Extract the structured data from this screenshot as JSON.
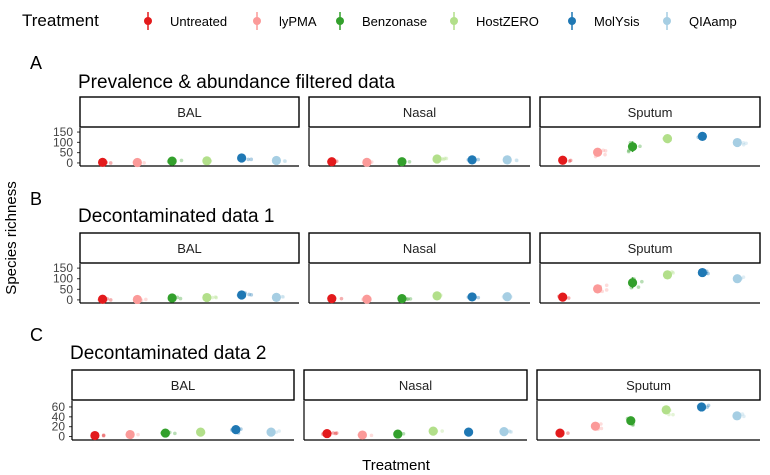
{
  "legend": {
    "title": "Treatment",
    "items": [
      {
        "label": "Untreated",
        "color": "#e31a1c"
      },
      {
        "label": "lyPMA",
        "color": "#fb9a99"
      },
      {
        "label": "Benzonase",
        "color": "#33a02c"
      },
      {
        "label": "HostZERO",
        "color": "#b2df8a"
      },
      {
        "label": "MolYsis",
        "color": "#1f78b4"
      },
      {
        "label": "QIAamp",
        "color": "#a6cee3"
      }
    ]
  },
  "axes": {
    "ylabel": "Species richness",
    "xlabel": "Treatment"
  },
  "chart_data": [
    {
      "type": "scatter",
      "panel_letter": "A",
      "title": "Prevalence & abundance filtered data",
      "facets": [
        "BAL",
        "Nasal",
        "Sputum"
      ],
      "categories": [
        "Untreated",
        "lyPMA",
        "Benzonase",
        "HostZERO",
        "MolYsis",
        "QIAamp"
      ],
      "yticks": [
        0,
        50,
        100,
        150
      ],
      "ylim": [
        -10,
        160
      ],
      "grid": false,
      "means": {
        "BAL": [
          3,
          2,
          9,
          10,
          24,
          12
        ],
        "Nasal": [
          6,
          3,
          6,
          19,
          15,
          15
        ],
        "Sputum": [
          13,
          52,
          79,
          118,
          129,
          99
        ]
      },
      "errors": {
        "BAL": [
          3,
          2,
          3,
          4,
          9,
          4
        ],
        "Nasal": [
          3,
          2,
          2,
          3,
          3,
          3
        ],
        "Sputum": [
          5,
          20,
          26,
          15,
          6,
          10
        ]
      }
    },
    {
      "type": "scatter",
      "panel_letter": "B",
      "title": "Decontaminated data 1",
      "facets": [
        "BAL",
        "Nasal",
        "Sputum"
      ],
      "categories": [
        "Untreated",
        "lyPMA",
        "Benzonase",
        "HostZERO",
        "MolYsis",
        "QIAamp"
      ],
      "yticks": [
        0,
        50,
        100,
        150
      ],
      "ylim": [
        -10,
        160
      ],
      "grid": false,
      "means": {
        "BAL": [
          3,
          2,
          9,
          11,
          23,
          12
        ],
        "Nasal": [
          6,
          3,
          6,
          19,
          14,
          15
        ],
        "Sputum": [
          13,
          52,
          81,
          118,
          129,
          100
        ]
      },
      "errors": {
        "BAL": [
          3,
          2,
          3,
          4,
          9,
          4
        ],
        "Nasal": [
          3,
          2,
          2,
          3,
          3,
          3
        ],
        "Sputum": [
          5,
          20,
          26,
          15,
          6,
          10
        ]
      }
    },
    {
      "type": "scatter",
      "panel_letter": "C",
      "title": "Decontaminated data 2",
      "facets": [
        "BAL",
        "Nasal",
        "Sputum"
      ],
      "categories": [
        "Untreated",
        "lyPMA",
        "Benzonase",
        "HostZERO",
        "MolYsis",
        "QIAamp"
      ],
      "yticks": [
        0,
        20,
        40,
        60
      ],
      "ylim": [
        -5,
        68
      ],
      "grid": false,
      "means": {
        "BAL": [
          2,
          4,
          7,
          9,
          14,
          9
        ],
        "Nasal": [
          6,
          3,
          5,
          11,
          9,
          10
        ],
        "Sputum": [
          7,
          21,
          32,
          54,
          60,
          42
        ]
      },
      "errors": {
        "BAL": [
          1,
          1,
          2,
          2,
          6,
          2
        ],
        "Nasal": [
          1,
          1,
          1,
          2,
          1,
          1
        ],
        "Sputum": [
          2,
          7,
          8,
          9,
          3,
          4
        ]
      }
    }
  ]
}
